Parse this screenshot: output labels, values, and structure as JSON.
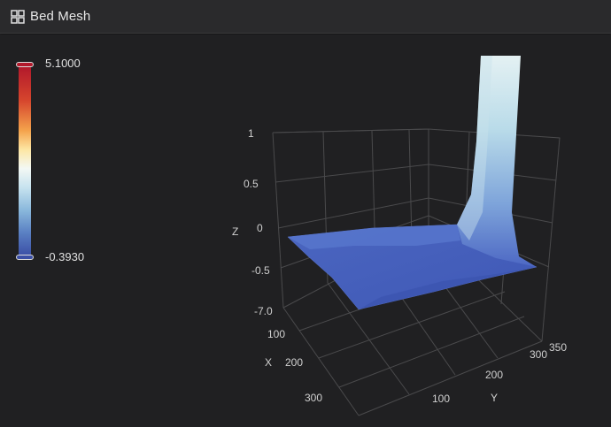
{
  "header": {
    "title": "Bed Mesh",
    "icon": "grid-icon"
  },
  "colorbar": {
    "max_label": "5.1000",
    "min_label": "-0.3930",
    "max_color": "#b2182b",
    "min_color": "#3b4fa6"
  },
  "plot": {
    "z_axis": {
      "label": "Z",
      "ticks": [
        "1",
        "0.5",
        "0",
        "-0.5",
        "-7.0"
      ]
    },
    "x_axis": {
      "label": "X",
      "ticks": [
        "100",
        "200",
        "300"
      ]
    },
    "y_axis": {
      "label": "Y",
      "ticks": [
        "100",
        "200",
        "300",
        "350"
      ]
    },
    "surface_color": "#4a67c4",
    "peak_color": "#dfeff4"
  }
}
